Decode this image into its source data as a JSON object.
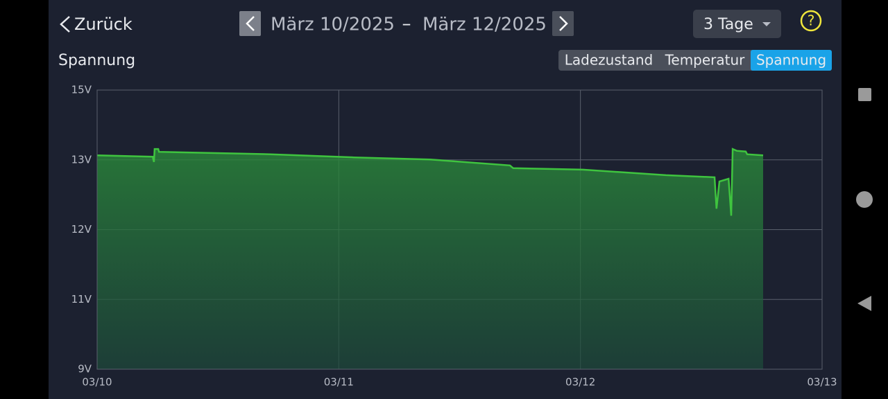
{
  "header": {
    "back": "Zurück",
    "date_from": "März 10/2025",
    "separator": "–",
    "date_to": "März 12/2025",
    "range": "3 Tage",
    "help": "?"
  },
  "tabs": [
    "Ladezustand",
    "Temperatur",
    "Spannung"
  ],
  "active_tab": 2,
  "chart_data": {
    "type": "line",
    "title": "Spannung",
    "x": [
      10.0,
      10.23,
      10.235,
      10.238,
      10.253,
      10.256,
      10.718,
      11.062,
      11.378,
      11.708,
      11.722,
      12.01,
      12.354,
      12.555,
      12.563,
      12.575,
      12.613,
      12.624,
      12.63,
      12.647,
      12.684,
      12.69,
      12.756
    ],
    "series": [
      {
        "color": "#3fc43f",
        "values": [
          13.13,
          13.09,
          12.97,
          13.31,
          13.31,
          13.23,
          13.16,
          13.07,
          13.01,
          12.92,
          12.88,
          12.86,
          12.78,
          12.75,
          12.3,
          12.69,
          12.73,
          12.2,
          13.31,
          13.26,
          13.24,
          13.16,
          13.13
        ]
      }
    ],
    "xlim": [
      10,
      13
    ],
    "xticks": [
      {
        "value": 10,
        "label": "03/10"
      },
      {
        "value": 11,
        "label": "03/11"
      },
      {
        "value": 12,
        "label": "03/12"
      },
      {
        "value": 13,
        "label": "03/13"
      }
    ],
    "yticks": [
      {
        "value": 9,
        "label": "9V"
      },
      {
        "value": 11,
        "label": "11V"
      },
      {
        "value": 12,
        "label": "12V"
      },
      {
        "value": 13,
        "label": "13V"
      },
      {
        "value": 15,
        "label": "15V"
      }
    ],
    "grid": true
  }
}
